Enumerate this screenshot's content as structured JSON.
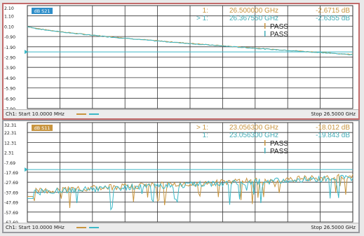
{
  "colors": {
    "trace_a": "#c8953f",
    "trace_b": "#3cb8c6",
    "marker_text_a": "#c8953f",
    "marker_text_b": "#45aeb8",
    "grid": "#333333",
    "limit_line": "#3cb8c6"
  },
  "top": {
    "badge": "dB S21",
    "ytick_labels": [
      "2.10",
      "1.10",
      "0.10",
      "-0.90",
      "-1.90",
      "-2.90",
      "-3.90",
      "-4.90",
      "-5.90",
      "-6.90",
      "-7.90"
    ],
    "markers": [
      {
        "prefix": "1:",
        "freq": "26.500000 GHz",
        "value": "-2.6715 dB",
        "color": "a"
      },
      {
        "prefix": "> 1:",
        "freq": "26.367550 GHz",
        "value": "-2.6355 dB",
        "color": "b"
      }
    ],
    "pass": [
      {
        "label": "PASS",
        "color": "a"
      },
      {
        "label": "PASS",
        "color": "b"
      }
    ],
    "footer_start": "Ch1: Start  10.0000 MHz",
    "footer_stop": "Stop  26.5000 GHz",
    "limit": -2.4
  },
  "bottom": {
    "badge": "dB S11",
    "ytick_labels": [
      "32.31",
      "22.31",
      "12.31",
      "2.31",
      "-7.69",
      "-17.69",
      "-27.69",
      "-37.69",
      "-47.69",
      "-57.69",
      "-67.69"
    ],
    "markers": [
      {
        "prefix": "> 1:",
        "freq": "23.056300 GHz",
        "value": "-18.012 dB",
        "color": "a"
      },
      {
        "prefix": "1:",
        "freq": "23.056300 GHz",
        "value": "-19.843 dB",
        "color": "b"
      }
    ],
    "pass": [
      {
        "label": "PASS",
        "color": "a"
      },
      {
        "label": "PASS",
        "color": "b"
      }
    ],
    "footer_start": "Ch1: Start  10.0000 MHz",
    "footer_stop": "Stop  26.5000 GHz",
    "limit": -15.0
  }
}
